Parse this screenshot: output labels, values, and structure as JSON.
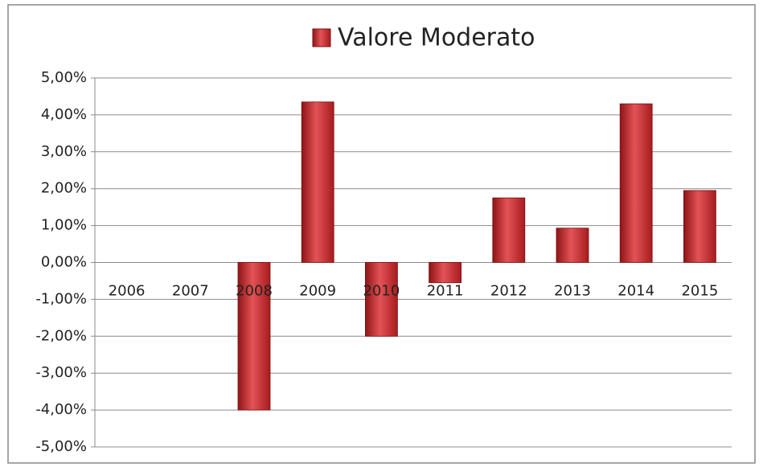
{
  "chart_data": {
    "type": "bar",
    "title": "Valore Moderato",
    "categories": [
      "2006",
      "2007",
      "2008",
      "2009",
      "2010",
      "2011",
      "2012",
      "2013",
      "2014",
      "2015"
    ],
    "values": [
      0,
      0,
      -4.0,
      4.35,
      -2.0,
      -0.55,
      1.75,
      0.93,
      4.3,
      1.95
    ],
    "color": "#c0282a",
    "ylim": [
      -5,
      5
    ],
    "yticks": [
      {
        "value": 5,
        "label": "5,00%"
      },
      {
        "value": 4,
        "label": "4,00%"
      },
      {
        "value": 3,
        "label": "3,00%"
      },
      {
        "value": 2,
        "label": "2,00%"
      },
      {
        "value": 1,
        "label": "1,00%"
      },
      {
        "value": 0,
        "label": "0,00%"
      },
      {
        "value": -1,
        "label": "-1,00%"
      },
      {
        "value": -2,
        "label": "-2,00%"
      },
      {
        "value": -3,
        "label": "-3,00%"
      },
      {
        "value": -4,
        "label": "-4,00%"
      },
      {
        "value": -5,
        "label": "-5,00%"
      }
    ],
    "grid": true,
    "legend": "top"
  }
}
